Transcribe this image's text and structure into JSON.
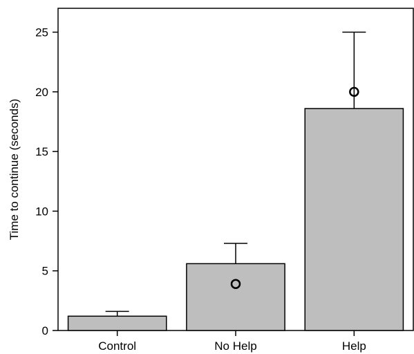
{
  "chart_data": {
    "type": "bar",
    "title": "",
    "xlabel": "",
    "ylabel": "Time to continue (seconds)",
    "ylim": [
      0,
      27
    ],
    "yticks": [
      0,
      5,
      10,
      15,
      20,
      25
    ],
    "categories": [
      "Control",
      "No Help",
      "Help"
    ],
    "values": [
      1.2,
      5.6,
      18.6
    ],
    "error_upper": [
      1.6,
      7.3,
      25.0
    ],
    "markers": [
      null,
      3.9,
      20.0
    ],
    "grid": false,
    "bar_color": "#bebebe",
    "edge_color": "#000000"
  }
}
